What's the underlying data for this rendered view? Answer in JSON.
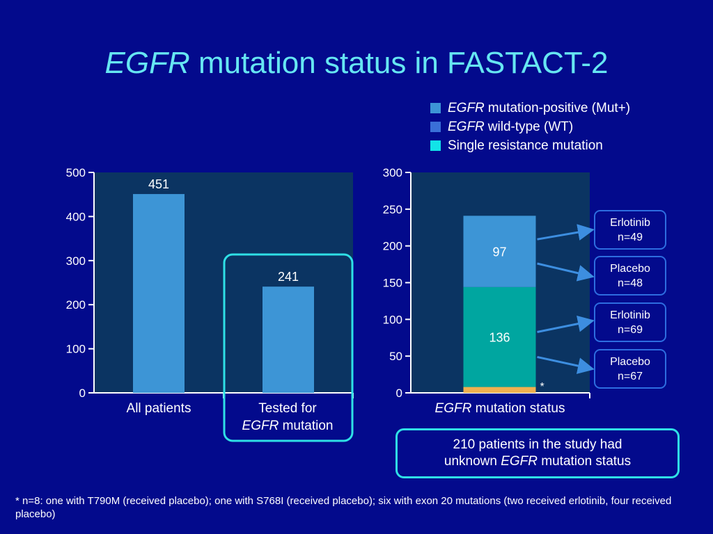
{
  "slide": {
    "title_italic": "EGFR",
    "title_rest": " mutation status in FASTACT-2"
  },
  "legend": [
    {
      "italic": "EGFR",
      "text": "mutation-positive (Mut+)",
      "color": "#3d95d6"
    },
    {
      "italic": "EGFR",
      "text": "wild-type (WT)",
      "color": "#3a6fd8"
    },
    {
      "italic": "",
      "text": "Single resistance mutation",
      "color": "#12e3e8"
    }
  ],
  "colors": {
    "plot_bg": "#0b3462",
    "bar": "#3d95d6",
    "wt": "#00a6a0",
    "resistance": "#f0b050",
    "highlight": "#2fe0e6",
    "arrow": "#3d8ee0"
  },
  "chart_data": [
    {
      "type": "bar",
      "categories": [
        "All patients",
        "Tested for EGFR mutation"
      ],
      "category_lines": [
        {
          "line1_italic": "",
          "line1_text": "All patients",
          "line2_italic": "",
          "line2_text": ""
        },
        {
          "line1_italic": "",
          "line1_text": "Tested for",
          "line2_italic": "EGFR",
          "line2_text": " mutation"
        }
      ],
      "values": [
        451,
        241
      ],
      "data_labels": [
        "451",
        "241"
      ],
      "ylim": [
        0,
        500
      ],
      "yticks": [
        0,
        100,
        200,
        300,
        400,
        500
      ],
      "highlighted_category": 1
    },
    {
      "type": "bar",
      "stacked": true,
      "categories": [
        "EGFR mutation status"
      ],
      "category_italic": "EGFR",
      "category_text": " mutation status",
      "series": [
        {
          "name": "Single resistance mutation",
          "values": [
            8
          ],
          "color": "#f0b050"
        },
        {
          "name": "EGFR wild-type (WT)",
          "values": [
            136
          ],
          "color": "#00a6a0"
        },
        {
          "name": "EGFR mutation-positive (Mut+)",
          "values": [
            97
          ],
          "color": "#3d95d6"
        }
      ],
      "data_labels": [
        "",
        "136",
        "97"
      ],
      "asterisk": "*",
      "ylim": [
        0,
        300
      ],
      "yticks": [
        0,
        50,
        100,
        150,
        200,
        250,
        300
      ]
    }
  ],
  "callouts": [
    {
      "line1": "Erlotinib",
      "line2": "n=49"
    },
    {
      "line1": "Placebo",
      "line2": "n=48"
    },
    {
      "line1": "Erlotinib",
      "line2": "n=69"
    },
    {
      "line1": "Placebo",
      "line2": "n=67"
    }
  ],
  "note": {
    "line1": "210 patients in the study had",
    "line2_pre": "unknown ",
    "line2_italic": "EGFR",
    "line2_post": " mutation status"
  },
  "footnote": "* n=8: one with T790M (received placebo); one with S768I (received placebo); six with exon 20 mutations (two received erlotinib, four received placebo)"
}
